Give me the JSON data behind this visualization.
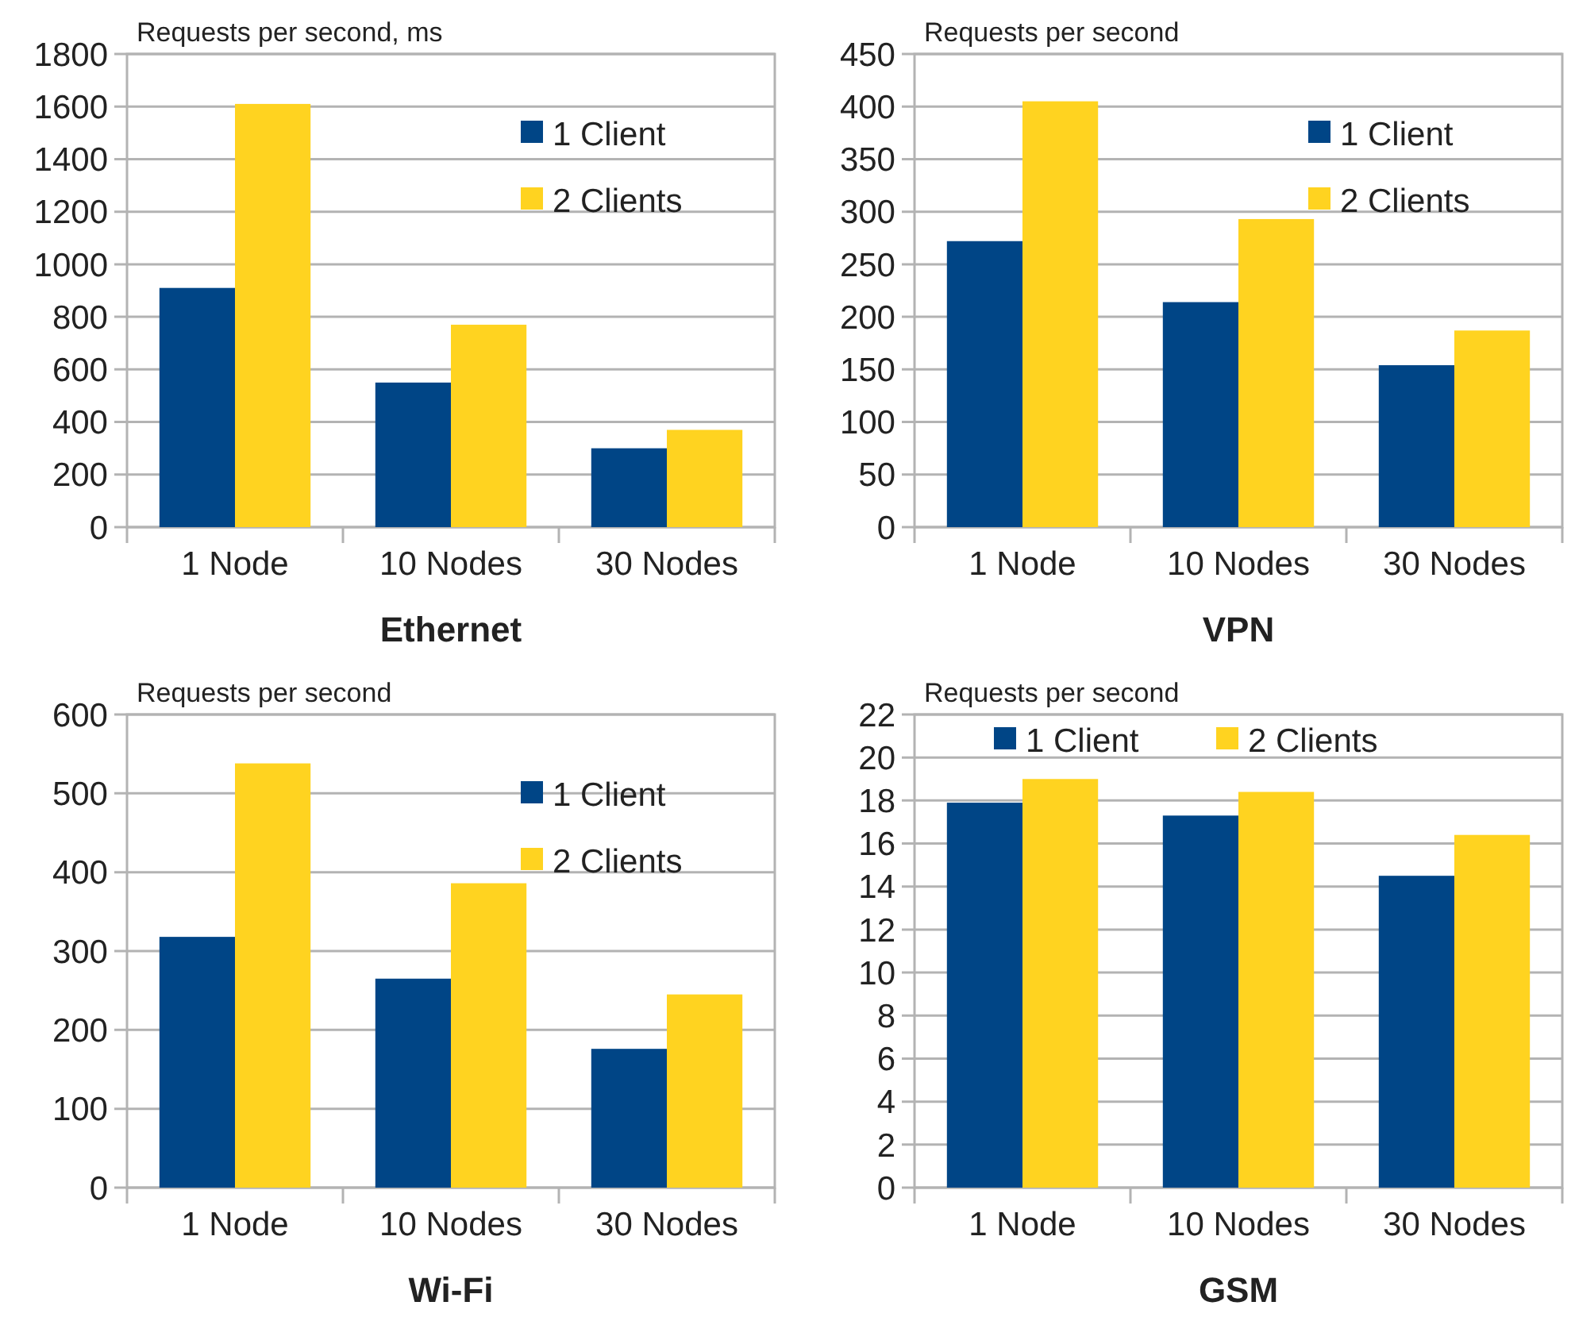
{
  "chart_data": [
    {
      "type": "bar",
      "xlabel": "Ethernet",
      "ylabel": "Requests per second, ms",
      "categories": [
        "1 Node",
        "10 Nodes",
        "30 Nodes"
      ],
      "series": [
        {
          "name": "1 Client",
          "color": "#004586",
          "values": [
            910,
            550,
            300
          ]
        },
        {
          "name": "2 Clients",
          "color": "#ffd320",
          "values": [
            1610,
            770,
            370
          ]
        }
      ],
      "ylim": [
        0,
        1800
      ],
      "yticks": [
        0,
        200,
        400,
        600,
        800,
        1000,
        1200,
        1400,
        1600,
        1800
      ],
      "grid": "y",
      "legend": "top right"
    },
    {
      "type": "bar",
      "xlabel": "VPN",
      "ylabel": "Requests per second",
      "categories": [
        "1 Node",
        "10 Nodes",
        "30 Nodes"
      ],
      "series": [
        {
          "name": "1 Client",
          "color": "#004586",
          "values": [
            272,
            214,
            154
          ]
        },
        {
          "name": "2 Clients",
          "color": "#ffd320",
          "values": [
            405,
            293,
            187
          ]
        }
      ],
      "ylim": [
        0,
        450
      ],
      "yticks": [
        0,
        50,
        100,
        150,
        200,
        250,
        300,
        350,
        400,
        450
      ],
      "grid": "y",
      "legend": "top right"
    },
    {
      "type": "bar",
      "xlabel": "Wi-Fi",
      "ylabel": "Requests per second",
      "categories": [
        "1 Node",
        "10 Nodes",
        "30 Nodes"
      ],
      "series": [
        {
          "name": "1 Client",
          "color": "#004586",
          "values": [
            318,
            265,
            176
          ]
        },
        {
          "name": "2 Clients",
          "color": "#ffd320",
          "values": [
            538,
            386,
            245
          ]
        }
      ],
      "ylim": [
        0,
        600
      ],
      "yticks": [
        0,
        100,
        200,
        300,
        400,
        500,
        600
      ],
      "grid": "y",
      "legend": "top right"
    },
    {
      "type": "bar",
      "xlabel": "GSM",
      "ylabel": "Requests per second",
      "categories": [
        "1 Node",
        "10 Nodes",
        "30 Nodes"
      ],
      "series": [
        {
          "name": "1 Client",
          "color": "#004586",
          "values": [
            17.9,
            17.3,
            14.5
          ]
        },
        {
          "name": "2 Clients",
          "color": "#ffd320",
          "values": [
            19.0,
            18.4,
            16.4
          ]
        }
      ],
      "ylim": [
        0,
        22
      ],
      "yticks": [
        0,
        2,
        4,
        6,
        8,
        10,
        12,
        14,
        16,
        18,
        20,
        22
      ],
      "grid": "y",
      "legend": "top"
    }
  ]
}
